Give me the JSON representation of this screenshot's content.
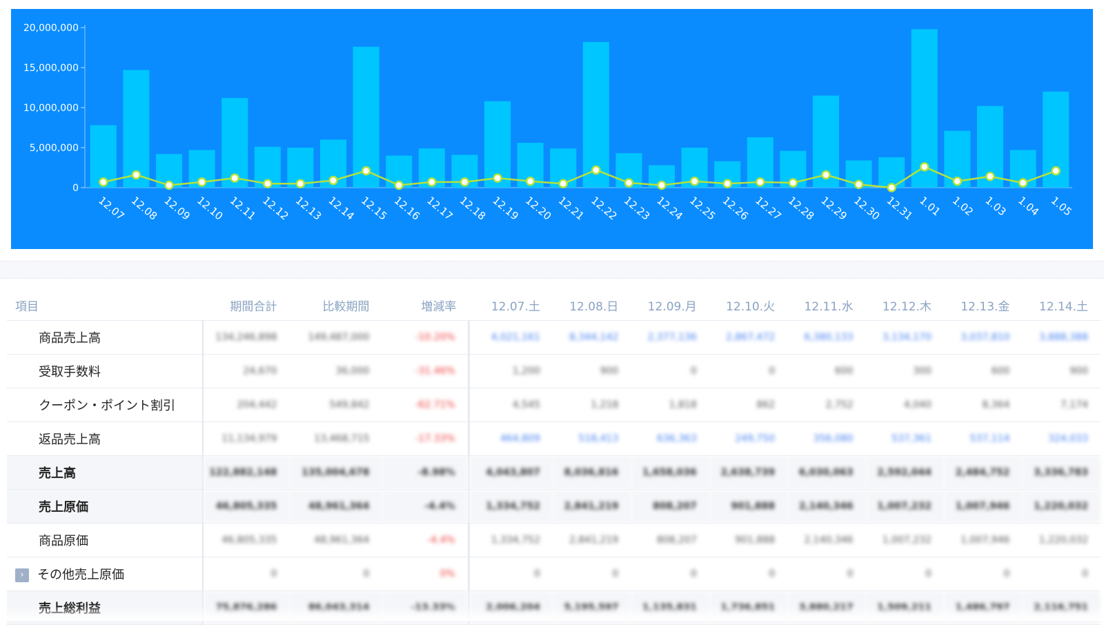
{
  "chart_data": {
    "type": "bar",
    "categories": [
      "12.07",
      "12.08",
      "12.09",
      "12.10",
      "12.11",
      "12.12",
      "12.13",
      "12.14",
      "12.15",
      "12.16",
      "12.17",
      "12.18",
      "12.19",
      "12.20",
      "12.21",
      "12.22",
      "12.23",
      "12.24",
      "12.25",
      "12.26",
      "12.27",
      "12.28",
      "12.29",
      "12.30",
      "12.31",
      "1.01",
      "1.02",
      "1.03",
      "1.04",
      "1.05"
    ],
    "series": [
      {
        "values": [
          7800000,
          14700000,
          4200000,
          4700000,
          11200000,
          5100000,
          5000000,
          6000000,
          17600000,
          4000000,
          4900000,
          4100000,
          10800000,
          5600000,
          4900000,
          18200000,
          4300000,
          2800000,
          5000000,
          3300000,
          6300000,
          4600000,
          11500000,
          3400000,
          3800000,
          19800000,
          7100000,
          10200000,
          4700000,
          12000000
        ]
      },
      {
        "type": "line",
        "values": [
          700000,
          1600000,
          300000,
          700000,
          1200000,
          500000,
          500000,
          900000,
          2100000,
          300000,
          700000,
          700000,
          1200000,
          800000,
          500000,
          2200000,
          600000,
          300000,
          800000,
          500000,
          700000,
          600000,
          1600000,
          400000,
          0,
          2600000,
          800000,
          1400000,
          600000,
          2100000
        ]
      }
    ],
    "ylim": [
      0,
      20000000
    ],
    "yticks": [
      "0",
      "5,000,000",
      "10,000,000",
      "15,000,000",
      "20,000,000"
    ],
    "ytick_values": [
      0,
      5000000,
      10000000,
      15000000,
      20000000
    ],
    "colors": {
      "background": "#0a8cff",
      "bars": "#00c6ff",
      "line": "#b6e23a",
      "dots": "#ffffff"
    }
  },
  "table": {
    "headers": [
      "項目",
      "期間合計",
      "比較期間",
      "増減率",
      "12.07.土",
      "12.08.日",
      "12.09.月",
      "12.10.火",
      "12.11.水",
      "12.12.木",
      "12.13.金",
      "12.14.土"
    ],
    "rows": [
      {
        "label": "商品売上高",
        "bold": false,
        "expandable": false,
        "cells": [
          "134,246,898",
          "149,487,000",
          "-10.20%",
          "4,021,161",
          "8,344,142",
          "2,377,136",
          "2,867,472",
          "6,380,133",
          "3,134,170",
          "3,037,810",
          "3,888,388"
        ],
        "blue": true
      },
      {
        "label": "受取手数料",
        "bold": false,
        "expandable": false,
        "cells": [
          "24,670",
          "36,000",
          "-31.46%",
          "1,200",
          "900",
          "0",
          "0",
          "600",
          "300",
          "600",
          "900"
        ],
        "blue": false
      },
      {
        "label": "クーポン・ポイント割引",
        "bold": false,
        "expandable": false,
        "cells": [
          "204,442",
          "549,842",
          "-62.71%",
          "4,545",
          "1,218",
          "1,818",
          "862",
          "2,752",
          "4,040",
          "8,364",
          "7,174"
        ],
        "blue": false
      },
      {
        "label": "返品売上高",
        "bold": false,
        "expandable": false,
        "cells": [
          "11,134,979",
          "13,468,715",
          "-17.33%",
          "464,809",
          "518,413",
          "636,363",
          "249,750",
          "356,080",
          "537,361",
          "537,114",
          "324,033"
        ],
        "blue": true
      },
      {
        "label": "売上高",
        "bold": true,
        "expandable": false,
        "cells": [
          "122,882,148",
          "135,004,678",
          "-8.98%",
          "4,043,807",
          "8,036,816",
          "1,658,036",
          "2,638,739",
          "6,030,063",
          "2,592,044",
          "2,484,752",
          "3,336,783"
        ],
        "blue": false
      },
      {
        "label": "売上原価",
        "bold": true,
        "expandable": false,
        "cells": [
          "46,805,335",
          "48,961,364",
          "-4.4%",
          "1,334,752",
          "2,841,219",
          "808,207",
          "901,888",
          "2,140,346",
          "1,007,232",
          "1,007,946",
          "1,220,032"
        ],
        "blue": false
      },
      {
        "label": "商品原価",
        "bold": false,
        "expandable": false,
        "cells": [
          "46,805,335",
          "48,961,364",
          "-4.4%",
          "1,334,752",
          "2,841,219",
          "808,207",
          "901,888",
          "2,140,346",
          "1,007,232",
          "1,007,946",
          "1,220,032"
        ],
        "blue": false
      },
      {
        "label": "その他売上原価",
        "bold": false,
        "expandable": true,
        "cells": [
          "0",
          "0",
          "0%",
          "0",
          "0",
          "0",
          "0",
          "0",
          "0",
          "0",
          "0"
        ],
        "blue": false
      },
      {
        "label": "売上総利益",
        "bold": true,
        "expandable": false,
        "cells": [
          "75,876,286",
          "86,043,314",
          "-13.33%",
          "2,006,204",
          "5,195,597",
          "1,135,831",
          "1,736,851",
          "3,880,217",
          "1,509,211",
          "1,486,797",
          "2,116,751"
        ],
        "blue": false
      }
    ],
    "expand_glyph": "›"
  }
}
